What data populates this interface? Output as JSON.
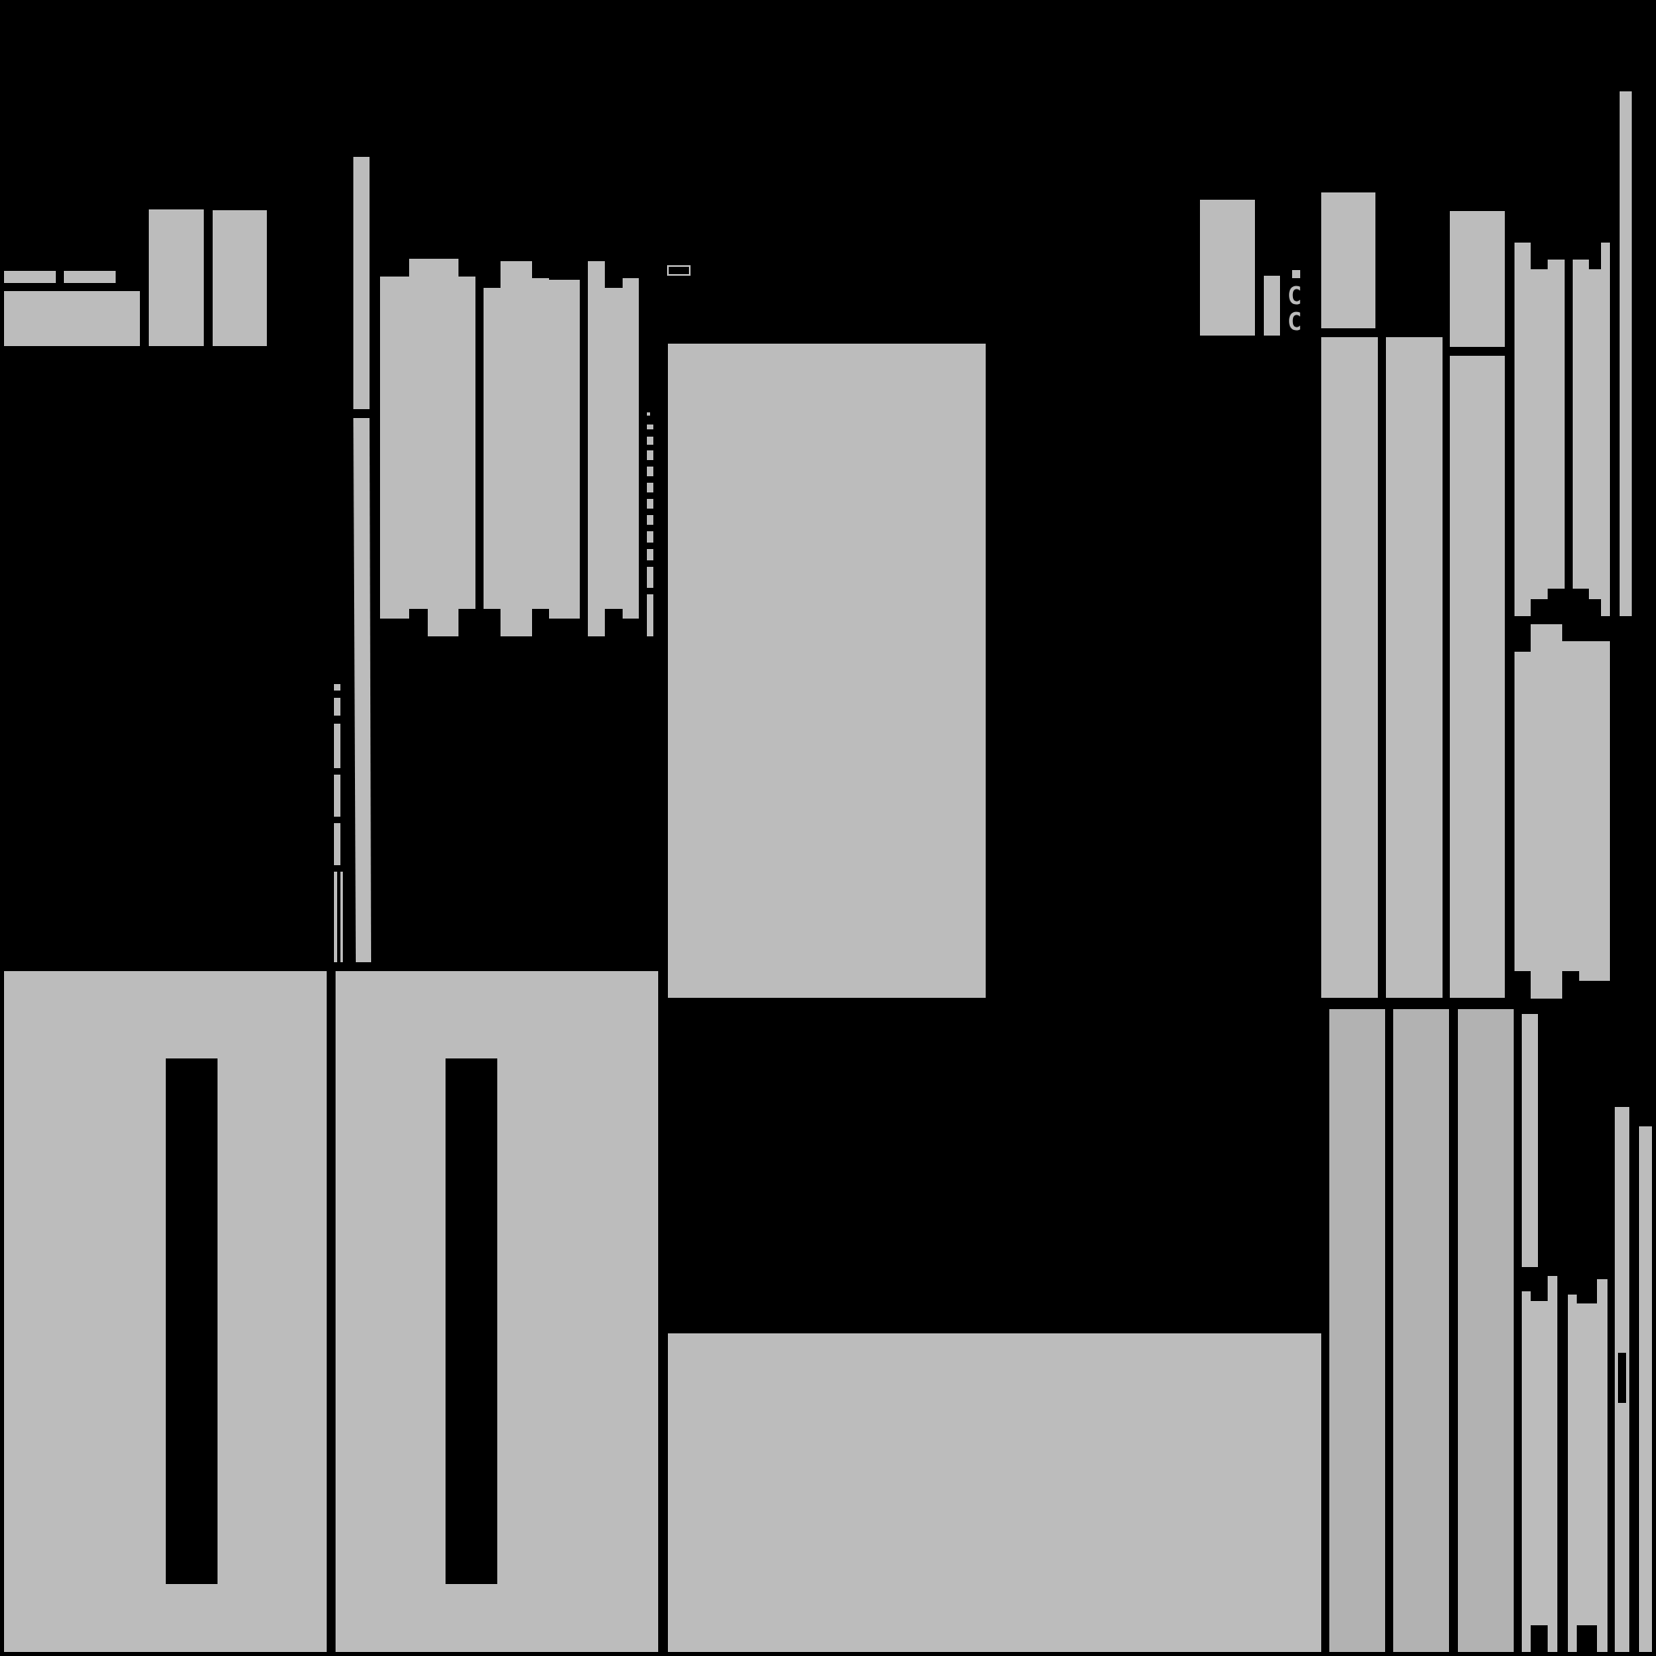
{
  "canvas": {
    "background": "#000000",
    "panel_color": "#bcbcbc",
    "panel_color_dark": "#b2b2b2",
    "hole_color": "#000000"
  },
  "glyphs": {
    "c_upper": "C",
    "c_lower": "C"
  }
}
